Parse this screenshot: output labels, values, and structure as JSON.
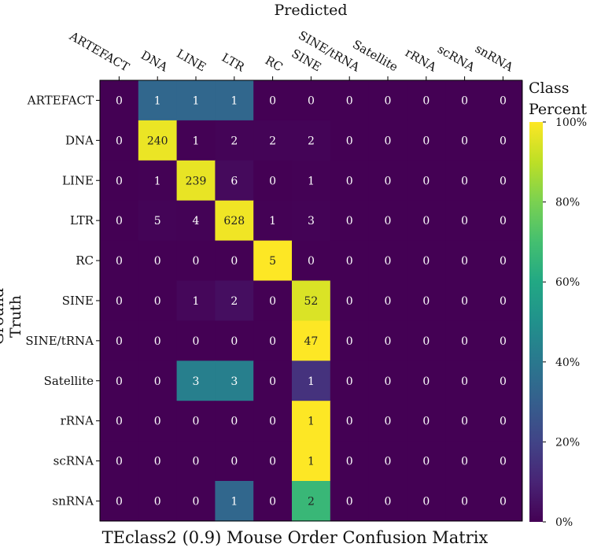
{
  "chart_data": {
    "type": "heatmap",
    "title": "TEclass2 (0.9) Mouse Order Confusion Matrix",
    "xlabel": "Predicted",
    "ylabel": "Ground Truth",
    "x_categories": [
      "ARTEFACT",
      "DNA",
      "LINE",
      "LTR",
      "RC",
      "SINE",
      "SINE/tRNA",
      "Satellite",
      "rRNA",
      "scRNA",
      "snRNA"
    ],
    "y_categories": [
      "ARTEFACT",
      "DNA",
      "LINE",
      "LTR",
      "RC",
      "SINE",
      "SINE/tRNA",
      "Satellite",
      "rRNA",
      "scRNA",
      "snRNA"
    ],
    "values": [
      [
        0,
        1,
        1,
        1,
        0,
        0,
        0,
        0,
        0,
        0,
        0
      ],
      [
        0,
        240,
        1,
        2,
        2,
        2,
        0,
        0,
        0,
        0,
        0
      ],
      [
        0,
        1,
        239,
        6,
        0,
        1,
        0,
        0,
        0,
        0,
        0
      ],
      [
        0,
        5,
        4,
        628,
        1,
        3,
        0,
        0,
        0,
        0,
        0
      ],
      [
        0,
        0,
        0,
        0,
        5,
        0,
        0,
        0,
        0,
        0,
        0
      ],
      [
        0,
        0,
        1,
        2,
        0,
        52,
        0,
        0,
        0,
        0,
        0
      ],
      [
        0,
        0,
        0,
        0,
        0,
        47,
        0,
        0,
        0,
        0,
        0
      ],
      [
        0,
        0,
        3,
        3,
        0,
        1,
        0,
        0,
        0,
        0,
        0
      ],
      [
        0,
        0,
        0,
        0,
        0,
        1,
        0,
        0,
        0,
        0,
        0
      ],
      [
        0,
        0,
        0,
        0,
        0,
        1,
        0,
        0,
        0,
        0,
        0
      ],
      [
        0,
        0,
        0,
        1,
        0,
        2,
        0,
        0,
        0,
        0,
        0
      ]
    ],
    "colorbar": {
      "title_line1": "Class",
      "title_line2": "Percent",
      "ticks": [
        "100%",
        "80%",
        "60%",
        "40%",
        "20%",
        "0%"
      ],
      "range": [
        0,
        100
      ]
    },
    "colormap": "viridis"
  }
}
